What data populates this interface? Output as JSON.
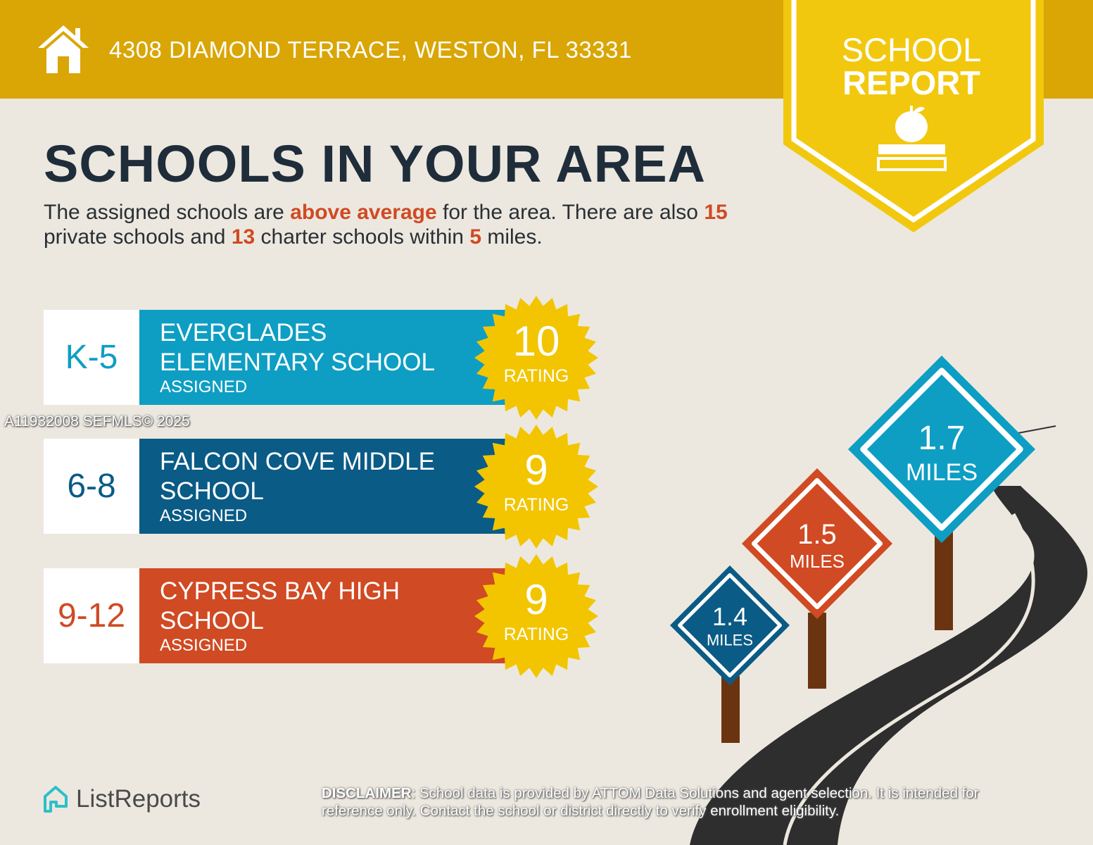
{
  "header": {
    "address": "4308 DIAMOND TERRACE, WESTON, FL 33331",
    "icon": "house-icon"
  },
  "banner": {
    "line1": "SCHOOL",
    "line2": "REPORT",
    "icon": "apple-books-icon"
  },
  "title": "SCHOOLS IN YOUR AREA",
  "intro": {
    "p1": "The assigned schools are ",
    "h1": "above average",
    "p2": " for the area. There are also ",
    "h2": "15",
    "p3": " private schools and ",
    "h3": "13",
    "p4": " charter schools within ",
    "h4": "5",
    "p5": " miles."
  },
  "schools": [
    {
      "grade": "K-5",
      "name_line1": "EVERGLADES",
      "name_line2": "ELEMENTARY SCHOOL",
      "status": "ASSIGNED",
      "rating": "10",
      "rating_label": "RATING",
      "color": "#0E9EC3"
    },
    {
      "grade": "6-8",
      "name_line1": "FALCON COVE MIDDLE",
      "name_line2": "SCHOOL",
      "status": "ASSIGNED",
      "rating": "9",
      "rating_label": "RATING",
      "color": "#0A5B85"
    },
    {
      "grade": "9-12",
      "name_line1": "CYPRESS BAY HIGH",
      "name_line2": "SCHOOL",
      "status": "ASSIGNED",
      "rating": "9",
      "rating_label": "RATING",
      "color": "#D04A23"
    }
  ],
  "signs": [
    {
      "distance": "1.4",
      "unit": "MILES",
      "color": "#0A5B85"
    },
    {
      "distance": "1.5",
      "unit": "MILES",
      "color": "#D04A23"
    },
    {
      "distance": "1.7",
      "unit": "MILES",
      "color": "#0E9EC3"
    }
  ],
  "watermark": "A11932008  SEFMLS© 2025",
  "logo": "ListReports",
  "disclaimer": {
    "label": "DISCLAIMER",
    "text": ": School data is provided by ATTOM Data Solutions and agent selection. It is intended for reference only. Contact the school or district directly to verify enrollment eligibility."
  },
  "colors": {
    "header": "#D9A606",
    "banner": "#F2C80F",
    "badge": "#F2C500",
    "dark": "#1F2D3A",
    "accent": "#D04A23"
  }
}
